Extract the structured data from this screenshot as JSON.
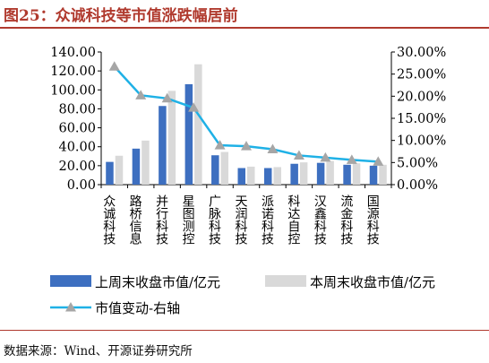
{
  "title": "图25：众诚科技等市值涨跌幅居前",
  "source": "数据来源：Wind、开源证券研究所",
  "colors": {
    "prev_bar": "#3d6fc0",
    "curr_bar": "#d9d9d9",
    "line": "#1fb1e6",
    "marker": "#a6a6a6",
    "title": "#b03a2e"
  },
  "chart_data": {
    "type": "bar",
    "categories": [
      "众诚科技",
      "路桥信息",
      "并行科技",
      "星图测控",
      "广脉科技",
      "天润科技",
      "派诺科技",
      "科达自控",
      "汉鑫科技",
      "流金科技",
      "国源科技"
    ],
    "series": [
      {
        "name": "上周末收盘市值/亿元",
        "kind": "bar",
        "axis": "left",
        "color": "#3d6fc0",
        "values": [
          24.0,
          38.0,
          83.0,
          106.0,
          31.0,
          17.5,
          17.5,
          22.0,
          23.0,
          21.0,
          20.0
        ]
      },
      {
        "name": "本周末收盘市值/亿元",
        "kind": "bar",
        "axis": "left",
        "color": "#d9d9d9",
        "values": [
          30.5,
          46.5,
          99.0,
          127.0,
          34.5,
          19.0,
          18.5,
          23.5,
          25.0,
          22.5,
          21.0
        ]
      },
      {
        "name": "市值变动-右轴",
        "kind": "line",
        "axis": "right",
        "color": "#1fb1e6",
        "values": [
          26.7,
          20.2,
          19.5,
          17.4,
          8.9,
          8.7,
          8.0,
          6.6,
          6.1,
          5.6,
          5.2
        ]
      }
    ],
    "y_left": {
      "min": 0,
      "max": 140,
      "ticks": [
        "0.00",
        "20.00",
        "40.00",
        "60.00",
        "80.00",
        "100.00",
        "120.00",
        "140.00"
      ]
    },
    "y_right": {
      "min": 0,
      "max": 30,
      "ticks": [
        "0.00%",
        "5.00%",
        "10.00%",
        "15.00%",
        "20.00%",
        "25.00%",
        "30.00%"
      ]
    },
    "grid": false,
    "legend_position": "bottom"
  }
}
